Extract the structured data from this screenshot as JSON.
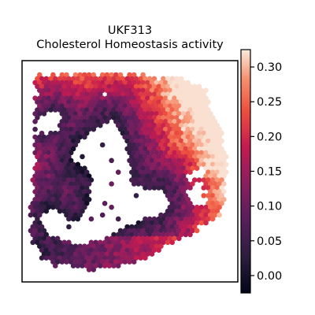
{
  "chart_data": {
    "type": "heatmap",
    "title": "UKF313",
    "subtitle": "Cholesterol Homeostasis activity",
    "xlabel": "",
    "ylabel": "",
    "grid": false,
    "colorbar": {
      "colormap": "rocket",
      "vmin": -0.025,
      "vmax": 0.325,
      "ticks": [
        0.0,
        0.05,
        0.1,
        0.15,
        0.2,
        0.25,
        0.3
      ],
      "tick_labels": [
        "0.00",
        "0.05",
        "0.10",
        "0.15",
        "0.20",
        "0.25",
        "0.30"
      ]
    },
    "spatial_pattern": {
      "description_regions": [
        {
          "region": "top band",
          "value_range": [
            0.18,
            0.3
          ]
        },
        {
          "region": "right edge",
          "value_range": [
            0.16,
            0.3
          ]
        },
        {
          "region": "inner ring near cavity",
          "value_range": [
            0.04,
            0.12
          ]
        },
        {
          "region": "bottom band",
          "value_range": [
            0.08,
            0.2
          ]
        }
      ]
    }
  }
}
